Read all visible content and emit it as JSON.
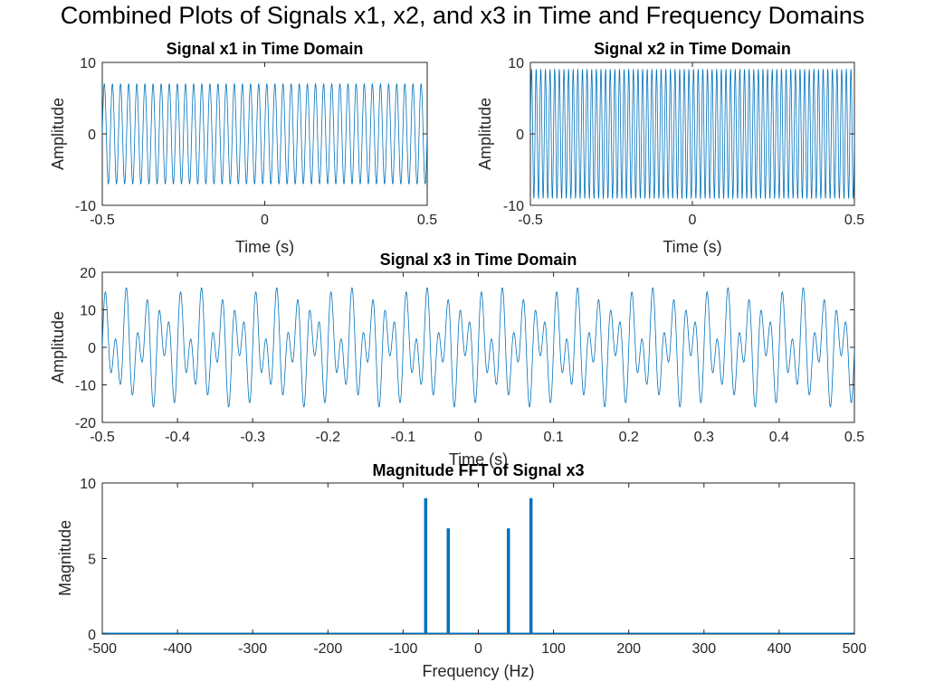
{
  "suptitle": "Combined Plots of Signals x1, x2, and x3 in Time and Frequency Domains",
  "line_color": "#0072BD",
  "chart_data": [
    {
      "type": "line",
      "title": "Signal x1 in Time Domain",
      "xlabel": "Time (s)",
      "ylabel": "Amplitude",
      "xlim": [
        -0.5,
        0.5
      ],
      "ylim": [
        -10,
        10
      ],
      "xticks": [
        -0.5,
        0,
        0.5
      ],
      "yticks": [
        -10,
        0,
        10
      ],
      "xtick_labels": [
        "-0.5",
        "0",
        "0.5"
      ],
      "ytick_labels": [
        "-10",
        "0",
        "10"
      ],
      "grid": false,
      "series": [
        {
          "components": [
            {
              "amplitude": 7,
              "frequency_hz": 40
            }
          ]
        }
      ]
    },
    {
      "type": "line",
      "title": "Signal x2 in Time Domain",
      "xlabel": "Time (s)",
      "ylabel": "Amplitude",
      "xlim": [
        -0.5,
        0.5
      ],
      "ylim": [
        -10,
        10
      ],
      "xticks": [
        -0.5,
        0,
        0.5
      ],
      "yticks": [
        -10,
        0,
        10
      ],
      "xtick_labels": [
        "-0.5",
        "0",
        "0.5"
      ],
      "ytick_labels": [
        "-10",
        "0",
        "10"
      ],
      "grid": false,
      "series": [
        {
          "components": [
            {
              "amplitude": 9,
              "frequency_hz": 70
            }
          ]
        }
      ]
    },
    {
      "type": "line",
      "title": "Signal x3 in Time Domain",
      "xlabel": "Time (s)",
      "ylabel": "Amplitude",
      "xlim": [
        -0.5,
        0.5
      ],
      "ylim": [
        -20,
        20
      ],
      "xticks": [
        -0.5,
        -0.4,
        -0.3,
        -0.2,
        -0.1,
        0,
        0.1,
        0.2,
        0.3,
        0.4,
        0.5
      ],
      "yticks": [
        -20,
        -10,
        0,
        10,
        20
      ],
      "xtick_labels": [
        "-0.5",
        "-0.4",
        "-0.3",
        "-0.2",
        "-0.1",
        "0",
        "0.1",
        "0.2",
        "0.3",
        "0.4",
        "0.5"
      ],
      "ytick_labels": [
        "-20",
        "-10",
        "0",
        "10",
        "20"
      ],
      "grid": false,
      "series": [
        {
          "components": [
            {
              "amplitude": 7,
              "frequency_hz": 40
            },
            {
              "amplitude": 9,
              "frequency_hz": 70
            }
          ]
        }
      ]
    },
    {
      "type": "line",
      "title": "Magnitude FFT of Signal x3",
      "xlabel": "Frequency (Hz)",
      "ylabel": "Magnitude",
      "xlim": [
        -500,
        500
      ],
      "ylim": [
        0,
        10
      ],
      "xticks": [
        -500,
        -400,
        -300,
        -200,
        -100,
        0,
        100,
        200,
        300,
        400,
        500
      ],
      "yticks": [
        0,
        5,
        10
      ],
      "xtick_labels": [
        "-500",
        "-400",
        "-300",
        "-200",
        "-100",
        "0",
        "100",
        "200",
        "300",
        "400",
        "500"
      ],
      "ytick_labels": [
        "0",
        "5",
        "10"
      ],
      "grid": false,
      "series": [
        {
          "peaks": [
            {
              "x": -70,
              "y": 9
            },
            {
              "x": -40,
              "y": 7
            },
            {
              "x": 40,
              "y": 7
            },
            {
              "x": 70,
              "y": 9
            }
          ],
          "baseline": 0
        }
      ]
    }
  ]
}
